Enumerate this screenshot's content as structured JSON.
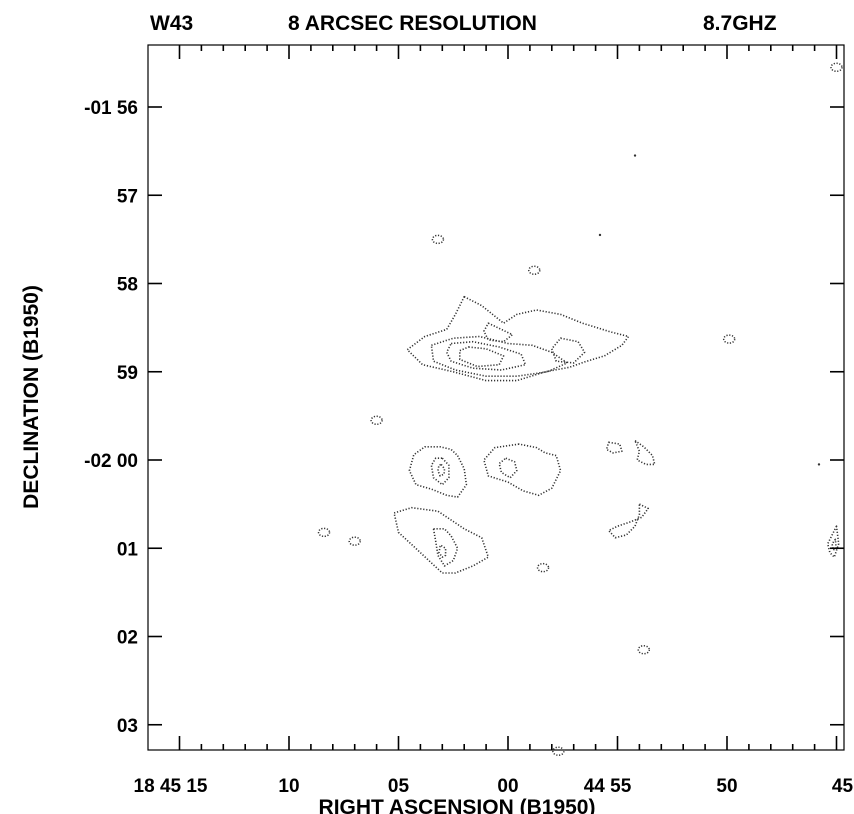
{
  "header": {
    "source": "W43",
    "resolution": "8 ARCSEC RESOLUTION",
    "frequency": "8.7GHZ"
  },
  "chart_data": {
    "type": "contour",
    "title": "8 ARCSEC RESOLUTION",
    "xlabel": "RIGHT ASCENSION (B1950)",
    "ylabel": "DECLINATION (B1950)",
    "x_unit": "seconds of RA after 18h 44m",
    "y_unit": "arcminutes of Dec, -01d 56m = 0",
    "xlim": [
      75.75,
      44.75
    ],
    "ylim": [
      7.3,
      -0.5
    ],
    "x_ticks": [
      {
        "value": 75,
        "label": "18 45 15"
      },
      {
        "value": 70,
        "label": "10"
      },
      {
        "value": 65,
        "label": "05"
      },
      {
        "value": 60,
        "label": "00"
      },
      {
        "value": 55,
        "label": "44 55"
      },
      {
        "value": 50,
        "label": "50"
      },
      {
        "value": 45,
        "label": "45"
      }
    ],
    "y_ticks": [
      {
        "value": 0,
        "label": "-01 56"
      },
      {
        "value": 1,
        "label": "57"
      },
      {
        "value": 2,
        "label": "58"
      },
      {
        "value": 3,
        "label": "59"
      },
      {
        "value": 4,
        "label": "-02 00"
      },
      {
        "value": 5,
        "label": "01"
      },
      {
        "value": 6,
        "label": "02"
      },
      {
        "value": 7,
        "label": "03"
      }
    ],
    "grid": false,
    "contours": [
      {
        "name": "northern-complex-outer",
        "kind": "closed",
        "level": 1,
        "points": [
          [
            62.0,
            2.15
          ],
          [
            61.2,
            2.25
          ],
          [
            60.2,
            2.45
          ],
          [
            59.6,
            2.35
          ],
          [
            58.7,
            2.3
          ],
          [
            57.6,
            2.35
          ],
          [
            56.6,
            2.45
          ],
          [
            55.3,
            2.55
          ],
          [
            54.5,
            2.6
          ],
          [
            54.8,
            2.7
          ],
          [
            55.6,
            2.82
          ],
          [
            56.4,
            2.88
          ],
          [
            57.2,
            2.95
          ],
          [
            58.3,
            3.0
          ],
          [
            59.6,
            3.1
          ],
          [
            61.0,
            3.1
          ],
          [
            62.5,
            3.0
          ],
          [
            63.9,
            2.92
          ],
          [
            64.6,
            2.75
          ],
          [
            63.8,
            2.6
          ],
          [
            62.8,
            2.52
          ],
          [
            62.4,
            2.35
          ],
          [
            62.0,
            2.15
          ]
        ]
      },
      {
        "name": "northern-complex-level-2",
        "kind": "closed",
        "level": 2,
        "points": [
          [
            63.5,
            2.7
          ],
          [
            62.5,
            2.62
          ],
          [
            61.3,
            2.6
          ],
          [
            60.0,
            2.68
          ],
          [
            58.9,
            2.7
          ],
          [
            58.0,
            2.78
          ],
          [
            57.3,
            2.9
          ],
          [
            58.2,
            3.0
          ],
          [
            59.6,
            3.05
          ],
          [
            61.0,
            3.05
          ],
          [
            62.4,
            2.98
          ],
          [
            63.4,
            2.88
          ],
          [
            63.5,
            2.7
          ]
        ]
      },
      {
        "name": "northern-complex-level-3",
        "kind": "closed",
        "level": 3,
        "points": [
          [
            62.6,
            2.68
          ],
          [
            61.6,
            2.66
          ],
          [
            60.4,
            2.72
          ],
          [
            59.4,
            2.8
          ],
          [
            59.2,
            2.92
          ],
          [
            60.3,
            2.98
          ],
          [
            61.6,
            2.96
          ],
          [
            62.6,
            2.88
          ],
          [
            62.8,
            2.78
          ],
          [
            62.6,
            2.68
          ]
        ]
      },
      {
        "name": "northern-complex-level-4",
        "kind": "closed",
        "level": 4,
        "points": [
          [
            61.8,
            2.72
          ],
          [
            61.0,
            2.74
          ],
          [
            60.2,
            2.82
          ],
          [
            60.4,
            2.92
          ],
          [
            61.4,
            2.94
          ],
          [
            62.2,
            2.86
          ],
          [
            62.2,
            2.76
          ],
          [
            61.8,
            2.72
          ]
        ]
      },
      {
        "name": "northern-complex-east-blob",
        "kind": "closed",
        "level": 2,
        "points": [
          [
            57.6,
            2.62
          ],
          [
            56.8,
            2.66
          ],
          [
            56.5,
            2.78
          ],
          [
            57.0,
            2.9
          ],
          [
            57.8,
            2.88
          ],
          [
            58.0,
            2.74
          ],
          [
            57.6,
            2.62
          ]
        ]
      },
      {
        "name": "northern-complex-inner-loop",
        "kind": "closed",
        "level": 2,
        "points": [
          [
            60.9,
            2.45
          ],
          [
            60.3,
            2.52
          ],
          [
            59.8,
            2.58
          ],
          [
            60.2,
            2.66
          ],
          [
            60.9,
            2.64
          ],
          [
            61.1,
            2.54
          ],
          [
            60.9,
            2.45
          ]
        ]
      },
      {
        "name": "central-source-outer",
        "kind": "closed",
        "level": 1,
        "points": [
          [
            62.3,
            3.95
          ],
          [
            62.0,
            4.1
          ],
          [
            61.9,
            4.28
          ],
          [
            62.3,
            4.42
          ],
          [
            62.8,
            4.4
          ],
          [
            63.5,
            4.33
          ],
          [
            64.2,
            4.28
          ],
          [
            64.5,
            4.12
          ],
          [
            64.3,
            3.94
          ],
          [
            63.8,
            3.85
          ],
          [
            63.1,
            3.85
          ],
          [
            62.6,
            3.88
          ],
          [
            62.3,
            3.95
          ]
        ]
      },
      {
        "name": "central-source-level-2",
        "kind": "closed",
        "level": 2,
        "points": [
          [
            63.0,
            3.98
          ],
          [
            62.7,
            4.06
          ],
          [
            62.7,
            4.2
          ],
          [
            63.0,
            4.28
          ],
          [
            63.4,
            4.2
          ],
          [
            63.5,
            4.06
          ],
          [
            63.3,
            3.98
          ],
          [
            63.0,
            3.98
          ]
        ]
      },
      {
        "name": "central-source-level-3",
        "kind": "closed",
        "level": 3,
        "points": [
          [
            63.05,
            4.05
          ],
          [
            62.9,
            4.1
          ],
          [
            62.92,
            4.16
          ],
          [
            63.1,
            4.18
          ],
          [
            63.2,
            4.12
          ],
          [
            63.15,
            4.06
          ],
          [
            63.05,
            4.05
          ]
        ]
      },
      {
        "name": "central-east-source-outer",
        "kind": "closed",
        "level": 1,
        "points": [
          [
            59.5,
            3.82
          ],
          [
            60.6,
            3.86
          ],
          [
            61.1,
            4.0
          ],
          [
            60.9,
            4.18
          ],
          [
            60.0,
            4.25
          ],
          [
            59.3,
            4.35
          ],
          [
            58.6,
            4.4
          ],
          [
            58.0,
            4.32
          ],
          [
            57.6,
            4.12
          ],
          [
            57.8,
            3.95
          ],
          [
            58.3,
            3.92
          ],
          [
            58.7,
            3.86
          ],
          [
            59.5,
            3.82
          ]
        ]
      },
      {
        "name": "central-east-source-inner",
        "kind": "closed",
        "level": 2,
        "points": [
          [
            60.1,
            3.98
          ],
          [
            59.7,
            4.02
          ],
          [
            59.6,
            4.12
          ],
          [
            59.9,
            4.2
          ],
          [
            60.3,
            4.14
          ],
          [
            60.4,
            4.04
          ],
          [
            60.1,
            3.98
          ]
        ]
      },
      {
        "name": "southern-source-outer",
        "kind": "closed",
        "level": 1,
        "points": [
          [
            65.2,
            4.6
          ],
          [
            64.4,
            4.54
          ],
          [
            63.2,
            4.58
          ],
          [
            62.6,
            4.68
          ],
          [
            62.0,
            4.78
          ],
          [
            61.2,
            4.88
          ],
          [
            60.9,
            5.1
          ],
          [
            61.6,
            5.2
          ],
          [
            62.4,
            5.28
          ],
          [
            63.0,
            5.28
          ],
          [
            63.7,
            5.12
          ],
          [
            64.3,
            4.98
          ],
          [
            65.0,
            4.82
          ],
          [
            65.2,
            4.6
          ]
        ]
      },
      {
        "name": "southern-source-level-2",
        "kind": "closed",
        "level": 2,
        "points": [
          [
            63.4,
            4.78
          ],
          [
            62.9,
            4.78
          ],
          [
            62.6,
            4.86
          ],
          [
            62.3,
            5.0
          ],
          [
            62.5,
            5.14
          ],
          [
            62.9,
            5.2
          ],
          [
            63.2,
            5.08
          ],
          [
            63.3,
            4.92
          ],
          [
            63.4,
            4.78
          ]
        ]
      },
      {
        "name": "southern-source-level-3",
        "kind": "closed",
        "level": 3,
        "points": [
          [
            63.05,
            4.97
          ],
          [
            62.85,
            5.0
          ],
          [
            62.85,
            5.08
          ],
          [
            63.0,
            5.1
          ],
          [
            63.15,
            5.05
          ],
          [
            63.1,
            4.98
          ],
          [
            63.05,
            4.97
          ]
        ]
      },
      {
        "name": "east-pair-north",
        "kind": "closed",
        "level": 1,
        "points": [
          [
            54.2,
            3.78
          ],
          [
            53.8,
            3.85
          ],
          [
            53.4,
            3.95
          ],
          [
            53.3,
            4.05
          ],
          [
            53.7,
            4.05
          ],
          [
            54.1,
            4.0
          ],
          [
            54.0,
            3.9
          ],
          [
            54.2,
            3.78
          ]
        ]
      },
      {
        "name": "east-pair-north-spot",
        "kind": "closed",
        "level": 1,
        "points": [
          [
            55.4,
            3.8
          ],
          [
            54.9,
            3.82
          ],
          [
            54.8,
            3.9
          ],
          [
            55.2,
            3.92
          ],
          [
            55.5,
            3.88
          ],
          [
            55.4,
            3.8
          ]
        ]
      },
      {
        "name": "east-pair-south",
        "kind": "closed",
        "level": 1,
        "points": [
          [
            54.0,
            4.5
          ],
          [
            53.6,
            4.55
          ],
          [
            53.9,
            4.65
          ],
          [
            54.4,
            4.7
          ],
          [
            55.0,
            4.75
          ],
          [
            55.4,
            4.8
          ],
          [
            55.1,
            4.88
          ],
          [
            54.6,
            4.85
          ],
          [
            54.2,
            4.75
          ],
          [
            54.0,
            4.62
          ],
          [
            54.0,
            4.5
          ]
        ]
      },
      {
        "name": "west-edge-source",
        "kind": "closed",
        "level": 1,
        "points": [
          [
            45.0,
            4.75
          ],
          [
            45.2,
            4.85
          ],
          [
            45.4,
            4.95
          ],
          [
            45.3,
            5.05
          ],
          [
            45.1,
            5.1
          ],
          [
            44.9,
            4.95
          ],
          [
            45.0,
            4.75
          ]
        ]
      },
      {
        "name": "west-edge-source-inner",
        "kind": "closed",
        "level": 2,
        "points": [
          [
            45.05,
            4.9
          ],
          [
            45.2,
            4.95
          ],
          [
            45.15,
            5.02
          ],
          [
            45.02,
            5.0
          ],
          [
            45.05,
            4.9
          ]
        ]
      }
    ],
    "compact_sources": [
      {
        "x": 63.2,
        "y": 1.5,
        "label": ""
      },
      {
        "x": 58.8,
        "y": 1.85,
        "label": ""
      },
      {
        "x": 49.9,
        "y": 2.63,
        "label": ""
      },
      {
        "x": 66.0,
        "y": 3.55,
        "label": ""
      },
      {
        "x": 68.4,
        "y": 4.82,
        "label": ""
      },
      {
        "x": 67.0,
        "y": 4.92,
        "label": ""
      },
      {
        "x": 58.4,
        "y": 5.22,
        "label": ""
      },
      {
        "x": 53.8,
        "y": 6.15,
        "label": ""
      },
      {
        "x": 57.7,
        "y": 7.3,
        "label": ""
      },
      {
        "x": 45.0,
        "y": -0.45,
        "label": ""
      }
    ],
    "point_sources": [
      {
        "x": 54.2,
        "y": 0.55
      },
      {
        "x": 55.8,
        "y": 1.45
      },
      {
        "x": 45.8,
        "y": 4.05
      }
    ]
  }
}
